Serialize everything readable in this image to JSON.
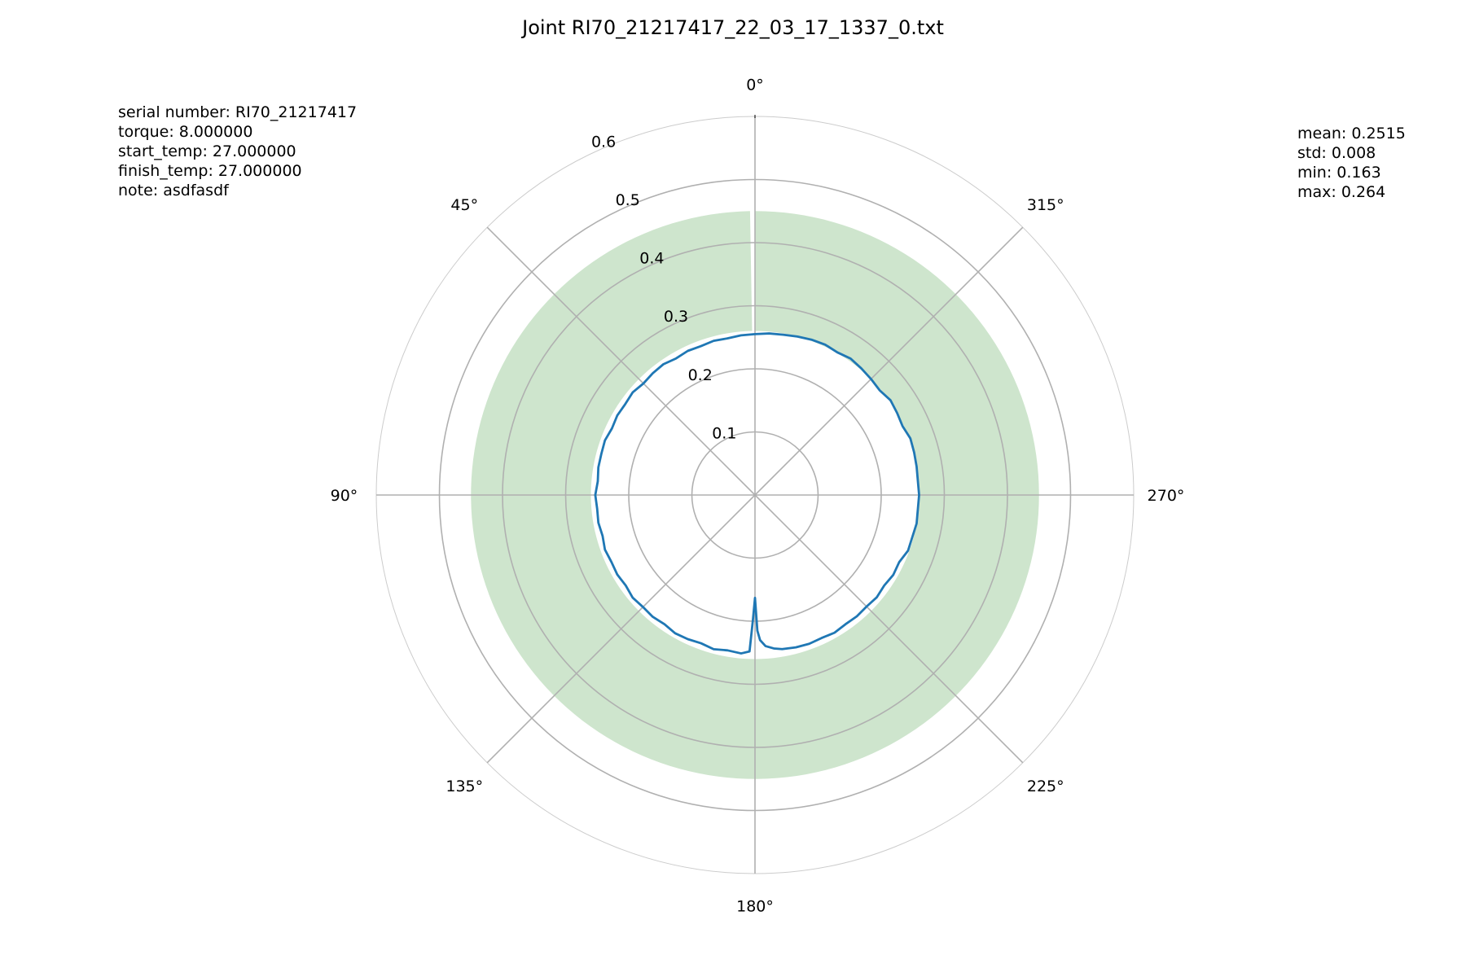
{
  "title": "Joint RI70_21217417_22_03_17_1337_0.txt",
  "params": [
    {
      "key": "serial number",
      "value": "RI70_21217417"
    },
    {
      "key": "torque",
      "value": "8.000000"
    },
    {
      "key": "start_temp",
      "value": "27.000000"
    },
    {
      "key": "finish_temp",
      "value": "27.000000"
    },
    {
      "key": "note",
      "value": "asdfasdf"
    }
  ],
  "stats": [
    {
      "key": "mean",
      "value": "0.2515"
    },
    {
      "key": "std",
      "value": "0.008"
    },
    {
      "key": "min",
      "value": "0.163"
    },
    {
      "key": "max",
      "value": "0.264"
    }
  ],
  "chart_data": {
    "type": "line",
    "projection": "polar",
    "theta_zero": "N",
    "theta_direction": "counterclockwise",
    "rlim": [
      0,
      0.6
    ],
    "r_ticks": [
      0.1,
      0.2,
      0.3,
      0.4,
      0.5,
      0.6
    ],
    "r_tick_labels": [
      "0.1",
      "0.2",
      "0.3",
      "0.4",
      "0.5",
      "0.6"
    ],
    "theta_ticks": [
      0,
      45,
      90,
      135,
      180,
      225,
      270,
      315
    ],
    "theta_tick_labels": [
      "0°",
      "45°",
      "90°",
      "135°",
      "180°",
      "225°",
      "270°",
      "315°"
    ],
    "grid": true,
    "band": {
      "r_inner": 0.26,
      "r_outer": 0.45,
      "gap_deg": [
        0,
        1
      ],
      "color": "#cee5cd"
    },
    "series": [
      {
        "color": "#1f77b4",
        "theta": [
          0,
          5,
          10,
          15,
          20,
          25,
          30,
          35,
          40,
          45,
          50,
          55,
          60,
          65,
          70,
          75,
          80,
          85,
          90,
          95,
          100,
          105,
          110,
          115,
          120,
          125,
          130,
          135,
          140,
          145,
          150,
          155,
          160,
          165,
          170,
          175,
          178,
          179,
          180,
          181,
          182,
          184,
          187,
          190,
          195,
          200,
          205,
          210,
          215,
          220,
          225,
          230,
          235,
          240,
          245,
          250,
          255,
          260,
          265,
          270,
          275,
          280,
          285,
          290,
          295,
          300,
          305,
          310,
          315,
          320,
          325,
          330,
          335,
          340,
          345,
          350,
          355,
          360
        ],
        "r": [
          0.255,
          0.254,
          0.252,
          0.253,
          0.251,
          0.252,
          0.25,
          0.253,
          0.252,
          0.25,
          0.253,
          0.251,
          0.252,
          0.25,
          0.253,
          0.252,
          0.252,
          0.25,
          0.253,
          0.251,
          0.252,
          0.25,
          0.253,
          0.251,
          0.252,
          0.25,
          0.253,
          0.251,
          0.252,
          0.25,
          0.253,
          0.252,
          0.25,
          0.253,
          0.25,
          0.252,
          0.248,
          0.2,
          0.163,
          0.215,
          0.23,
          0.24,
          0.245,
          0.248,
          0.25,
          0.251,
          0.25,
          0.252,
          0.25,
          0.251,
          0.25,
          0.252,
          0.25,
          0.253,
          0.252,
          0.258,
          0.258,
          0.26,
          0.259,
          0.26,
          0.259,
          0.26,
          0.261,
          0.262,
          0.258,
          0.26,
          0.262,
          0.258,
          0.26,
          0.262,
          0.264,
          0.261,
          0.263,
          0.262,
          0.26,
          0.258,
          0.257,
          0.255
        ]
      }
    ]
  }
}
